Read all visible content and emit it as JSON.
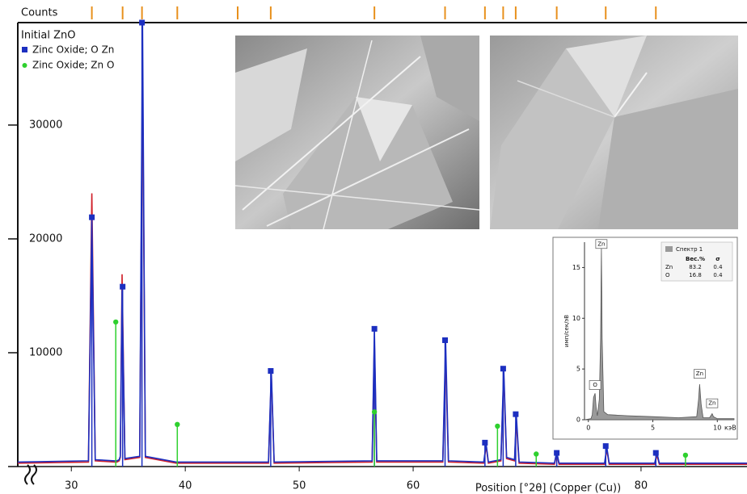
{
  "chart_data": [
    {
      "type": "line",
      "y_label": "Counts",
      "x_label": "Position [°2θ] (Copper (Cu))",
      "legend_title": "Initial ZnO",
      "xlim": [
        25.3,
        89.3
      ],
      "ylim": [
        0,
        39000
      ],
      "xticks": [
        30,
        40,
        50,
        60,
        80
      ],
      "yticks": [
        10000,
        20000,
        30000
      ],
      "reference_ticks": [
        31.8,
        34.5,
        36.2,
        39.3,
        44.6,
        47.5,
        56.6,
        62.8,
        66.3,
        67.9,
        69.0,
        72.6,
        76.9,
        81.3
      ],
      "reference_color": "#e8901c",
      "x": [
        25.3,
        31.5,
        31.8,
        32.1,
        33.8,
        34.0,
        34.2,
        34.3,
        34.45,
        34.7,
        36.0,
        36.25,
        36.5,
        39.2,
        39.3,
        39.4,
        47.3,
        47.55,
        47.8,
        56.4,
        56.6,
        56.8,
        62.6,
        62.85,
        63.1,
        66.2,
        66.4,
        66.6,
        67.7,
        67.95,
        68.2,
        68.9,
        69.05,
        69.3,
        72.4,
        72.6,
        72.8,
        76.8,
        77.0,
        77.2,
        81.2,
        81.4,
        81.6,
        89.3
      ],
      "profiles": [
        {
          "color": "#d0202a",
          "values": [
            300,
            400,
            24000,
            500,
            400,
            400,
            500,
            800,
            16900,
            600,
            800,
            35000,
            800,
            300,
            300,
            300,
            300,
            8000,
            300,
            400,
            11000,
            400,
            400,
            9500,
            400,
            300,
            1800,
            300,
            500,
            8000,
            700,
            500,
            4000,
            300,
            200,
            1100,
            200,
            200,
            1500,
            200,
            200,
            1000,
            200,
            200
          ]
        },
        {
          "color": "#1c2fc0",
          "values": [
            400,
            500,
            21500,
            600,
            500,
            500,
            600,
            900,
            15500,
            700,
            900,
            39000,
            900,
            400,
            400,
            400,
            400,
            8400,
            400,
            500,
            12000,
            500,
            500,
            11000,
            500,
            400,
            2000,
            400,
            600,
            8600,
            800,
            600,
            4600,
            400,
            300,
            1300,
            300,
            300,
            1700,
            300,
            300,
            1200,
            300,
            300
          ]
        }
      ],
      "series": [
        {
          "name": "Zinc Oxide; O Zn",
          "color": "#1c2fc0",
          "marker": "square",
          "x": [
            31.8,
            34.5,
            36.2,
            47.5,
            56.6,
            62.8,
            66.3,
            67.9,
            69.0,
            72.6,
            76.9,
            81.3
          ],
          "values": [
            21900,
            15800,
            39000,
            8400,
            12100,
            11100,
            2100,
            8600,
            4600,
            1200,
            1800,
            1200
          ]
        },
        {
          "name": "Zinc Oxide; Zn O",
          "color": "#2ed02e",
          "marker": "circle",
          "x": [
            33.9,
            39.3,
            56.6,
            67.4,
            70.8,
            83.9
          ],
          "values": [
            12700,
            3700,
            4800,
            3550,
            1100,
            1000
          ]
        }
      ]
    },
    {
      "type": "line",
      "y_label": "имп/сек/эВ",
      "x_unit": "кэВ",
      "legend": "Спектр 1",
      "color": "#9a9a9a",
      "xlim": [
        -0.3,
        11.3
      ],
      "ylim": [
        0,
        17.5
      ],
      "xticks": [
        0,
        5,
        10
      ],
      "yticks": [
        0,
        5,
        10,
        15
      ],
      "x": [
        -0.3,
        0.2,
        0.3,
        0.4,
        0.52,
        0.6,
        0.7,
        0.85,
        0.95,
        1.01,
        1.07,
        1.2,
        1.5,
        3,
        5,
        7,
        8.4,
        8.55,
        8.63,
        8.75,
        8.9,
        9.4,
        9.55,
        9.6,
        9.7,
        10,
        11.3
      ],
      "values": [
        0,
        0.1,
        0.5,
        2.2,
        2.6,
        1.2,
        0.4,
        2,
        8,
        17,
        8,
        0.8,
        0.5,
        0.4,
        0.3,
        0.2,
        0.3,
        2,
        3.5,
        1.5,
        0.2,
        0.2,
        0.5,
        0.6,
        0.3,
        0.1,
        0.1
      ],
      "peak_labels": [
        {
          "label": "Zn",
          "x": 1.01,
          "y": 17.2
        },
        {
          "label": "O",
          "x": 0.52,
          "y": 3.3
        },
        {
          "label": "Zn",
          "x": 8.63,
          "y": 4.4
        },
        {
          "label": "Zn",
          "x": 9.6,
          "y": 1.5
        }
      ],
      "table": {
        "header": [
          "Вес.%",
          "σ"
        ],
        "rows": [
          [
            "Zn",
            83.2,
            0.4
          ],
          [
            "O",
            16.8,
            0.4
          ]
        ]
      }
    }
  ]
}
